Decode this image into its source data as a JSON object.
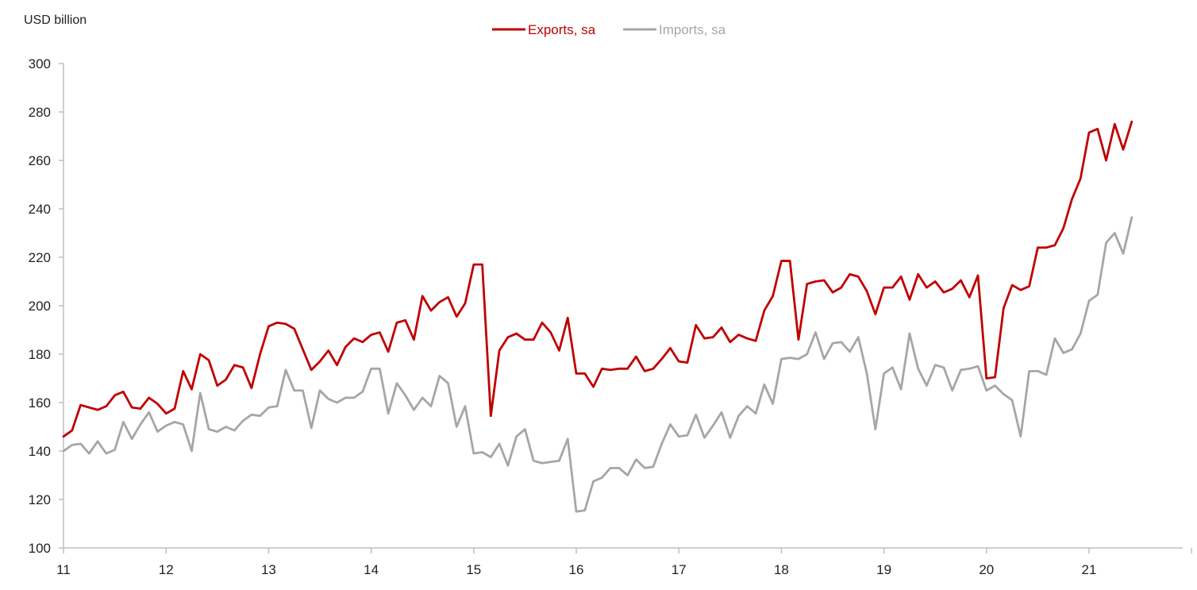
{
  "chart_data": {
    "type": "line",
    "y_unit_label": "USD billion",
    "ylim": [
      100,
      300
    ],
    "y_ticks": [
      100,
      120,
      140,
      160,
      180,
      200,
      220,
      240,
      260,
      280,
      300
    ],
    "x_tick_labels": [
      "11",
      "12",
      "13",
      "14",
      "15",
      "16",
      "17",
      "18",
      "19",
      "20",
      "21"
    ],
    "x_start_year": 2011,
    "x_end_year": 2022,
    "grid": false,
    "legend_position": "top-center",
    "series": [
      {
        "name": "Exports, sa",
        "color": "#c00000",
        "values": [
          146,
          148.5,
          159,
          158,
          157,
          158.5,
          163,
          164.5,
          158,
          157.5,
          162,
          159.5,
          155.5,
          157.5,
          173,
          165.5,
          180,
          177.5,
          167,
          169.5,
          175.5,
          174.5,
          166,
          180,
          191.5,
          193,
          192.5,
          190.5,
          182,
          173.5,
          177,
          181.5,
          175.5,
          183,
          186.5,
          185,
          188,
          189,
          181,
          193,
          194,
          186,
          204,
          198,
          201.5,
          203.5,
          195.5,
          201,
          217,
          217,
          154.5,
          181.5,
          187,
          188.5,
          186,
          186,
          193,
          189,
          181.5,
          195,
          172,
          172,
          166.5,
          174,
          173.5,
          174,
          174,
          179,
          173,
          174,
          178,
          182.5,
          177,
          176.5,
          192,
          186.5,
          187,
          191,
          185,
          188,
          186.5,
          185.5,
          198,
          204,
          218.5,
          218.5,
          186,
          209,
          210,
          210.5,
          205.5,
          207.5,
          213,
          212,
          206,
          196.5,
          207.5,
          207.5,
          212,
          202.5,
          213,
          207.5,
          210,
          205.5,
          207,
          210.5,
          203.5,
          212.5,
          170,
          170.5,
          199,
          208.5,
          206.5,
          208,
          224,
          224,
          225,
          232,
          244,
          252.5,
          271.5,
          273,
          260,
          275,
          264.5,
          276
        ]
      },
      {
        "name": "Imports, sa",
        "color": "#a6a6a6",
        "values": [
          140,
          142.5,
          143,
          139,
          144,
          139,
          140.5,
          152,
          145,
          151,
          156,
          148,
          150.5,
          152,
          151,
          140,
          164,
          149,
          148,
          150,
          148.5,
          152.5,
          155,
          154.5,
          158,
          158.5,
          173.5,
          165,
          165,
          149.5,
          165,
          161.5,
          160,
          162,
          162,
          164.5,
          174,
          174,
          155.5,
          168,
          163,
          157,
          162,
          158.5,
          171,
          168,
          150,
          158.5,
          139,
          139.5,
          137.5,
          143,
          134,
          146,
          149,
          136,
          135,
          135.5,
          136,
          145,
          115,
          115.5,
          127.5,
          129,
          133,
          133,
          130,
          136.5,
          133,
          133.5,
          143,
          151,
          146,
          146.5,
          155,
          145.5,
          150.5,
          156,
          145.5,
          154.5,
          158.5,
          155.5,
          167.5,
          159.5,
          178,
          178.5,
          178,
          180,
          189,
          178,
          184.5,
          185,
          181,
          187,
          172,
          149,
          172,
          174.5,
          165.5,
          188.5,
          174,
          167,
          175.5,
          174.5,
          165,
          173.5,
          174,
          175,
          165,
          167,
          163.5,
          161,
          146,
          173,
          173,
          171.5,
          186.5,
          180.5,
          182,
          188.5,
          202,
          204.5,
          226,
          230,
          221.5,
          236.5
        ]
      }
    ]
  }
}
